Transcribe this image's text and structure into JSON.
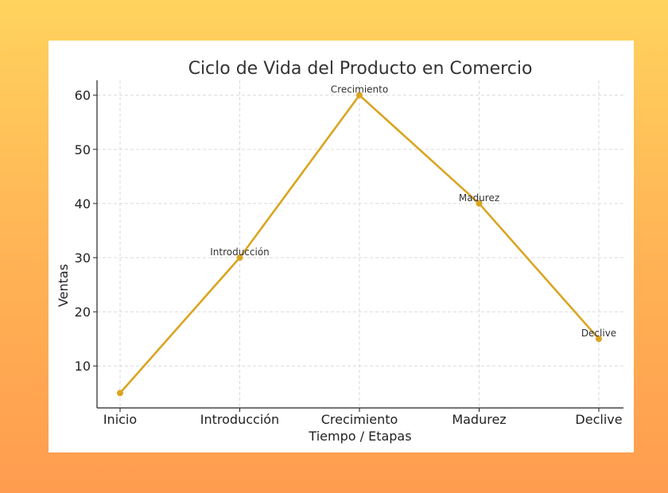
{
  "chart_data": {
    "type": "line",
    "title": "Ciclo de Vida del Producto en Comercio",
    "xlabel": "Tiempo / Etapas",
    "ylabel": "Ventas",
    "categories": [
      "Inicio",
      "Introducción",
      "Crecimiento",
      "Madurez",
      "Declive"
    ],
    "series": [
      {
        "values": [
          5,
          30,
          60,
          40,
          15
        ]
      }
    ],
    "point_labels": [
      "",
      "Introducción",
      "Crecimiento",
      "Madurez",
      "Declive"
    ],
    "yticks": [
      10,
      20,
      30,
      40,
      50,
      60
    ],
    "ylim": [
      2.25,
      62.75
    ],
    "grid": true,
    "colors": {
      "line": "#DAA520",
      "marker": "#DAA520",
      "grid": "#d9d9d9",
      "axis": "#222222",
      "background_top": "#FFD35E",
      "background_bottom": "#FF9C4F"
    }
  }
}
